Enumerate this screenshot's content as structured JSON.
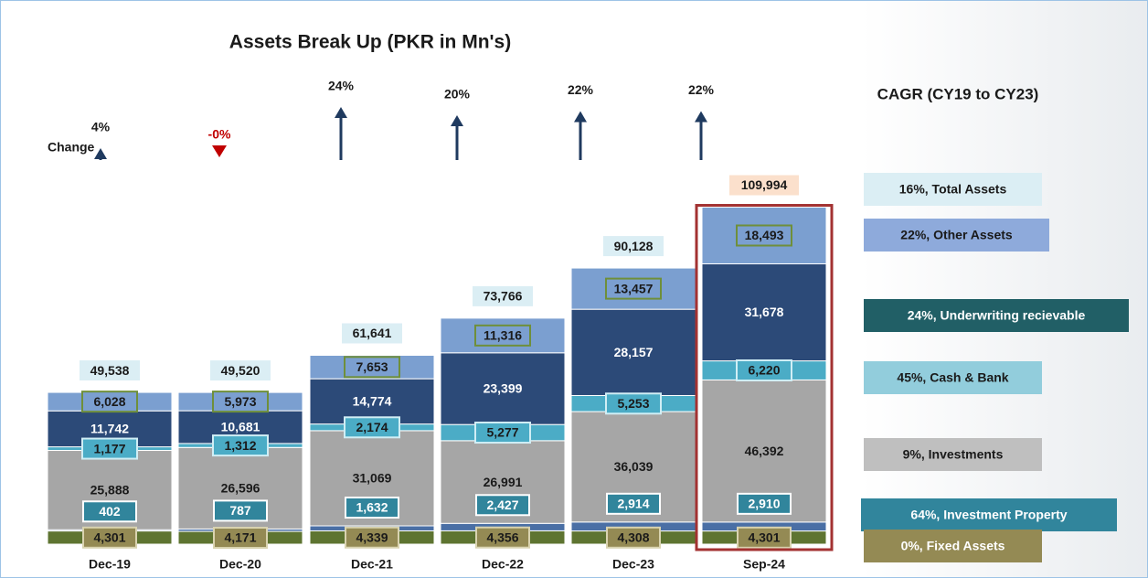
{
  "chart_data": {
    "type": "stacked_bar",
    "title": "Assets Break Up (PKR in Mn's)",
    "categories": [
      "Dec-19",
      "Dec-20",
      "Dec-21",
      "Dec-22",
      "Dec-23",
      "Sep-24"
    ],
    "ylim": [
      0,
      120000
    ],
    "change": {
      "label": "Change",
      "values": [
        4,
        -0.04,
        24,
        20,
        22,
        22
      ],
      "value_labels": [
        "4%",
        "-0%",
        "24%",
        "20%",
        "22%",
        "22%"
      ],
      "up_color": "#1f3a5f",
      "down_color": "#c00000"
    },
    "legend_title": "CAGR (CY19 to CY23)",
    "totals": {
      "name": "16%, Total Assets",
      "legend_color": "#dbeef4",
      "values": [
        49538,
        49520,
        61641,
        73766,
        90128,
        109994
      ],
      "value_labels": [
        "49,538",
        "49,520",
        "61,641",
        "73,766",
        "90,128",
        "109,994"
      ]
    },
    "series": [
      {
        "name": "0%, Fixed Assets",
        "color": "#5e7431",
        "legend_color": "#948a54",
        "label_fill": "#948a54",
        "label_border": "#d9d3b0",
        "label_text": "#1a1a1a",
        "values": [
          4301,
          4171,
          4339,
          4356,
          4308,
          4301
        ],
        "value_labels": [
          "4,301",
          "4,171",
          "4,339",
          "4,356",
          "4,308",
          "4,301"
        ]
      },
      {
        "name": "64%, Investment Property",
        "color": "#4a6fa5",
        "legend_color": "#31859c",
        "label_fill": "#31859c",
        "label_border": "#ffffff",
        "label_text": "#ffffff",
        "values": [
          402,
          787,
          1632,
          2427,
          2914,
          2910
        ],
        "value_labels": [
          "402",
          "787",
          "1,632",
          "2,427",
          "2,914",
          "2,910"
        ]
      },
      {
        "name": "9%, Investments",
        "color": "#a6a6a6",
        "legend_color": "#bfbfbf",
        "label_text": "#1a1a1a",
        "values": [
          25888,
          26596,
          31069,
          26991,
          36039,
          46392
        ],
        "value_labels": [
          "25,888",
          "26,596",
          "31,069",
          "26,991",
          "36,039",
          "46,392"
        ]
      },
      {
        "name": "45%, Cash & Bank",
        "color": "#4bacc6",
        "legend_color": "#92cddc",
        "label_fill": "#4bacc6",
        "label_border": "#d0eef5",
        "label_text": "#1a1a1a",
        "values": [
          1177,
          1312,
          2174,
          5277,
          5253,
          6220
        ],
        "value_labels": [
          "1,177",
          "1,312",
          "2,174",
          "5,277",
          "5,253",
          "6,220"
        ]
      },
      {
        "name": "24%, Underwriting recievable",
        "color": "#2c4a78",
        "legend_color": "#215f66",
        "label_text": "#ffffff",
        "values": [
          11742,
          10681,
          14774,
          23399,
          28157,
          31678
        ],
        "value_labels": [
          "11,742",
          "10,681",
          "14,774",
          "23,399",
          "28,157",
          "31,678"
        ]
      },
      {
        "name": "22%, Other Assets",
        "color": "#7b9fd0",
        "legend_color": "#8eaadb",
        "label_fill": "#7b9fd0",
        "label_border": "#6f8f3a",
        "label_text": "#1a1a1a",
        "values": [
          6028,
          5973,
          7653,
          11316,
          13457,
          18493
        ],
        "value_labels": [
          "6,028",
          "5,973",
          "7,653",
          "11,316",
          "13,457",
          "18,493"
        ]
      }
    ]
  }
}
